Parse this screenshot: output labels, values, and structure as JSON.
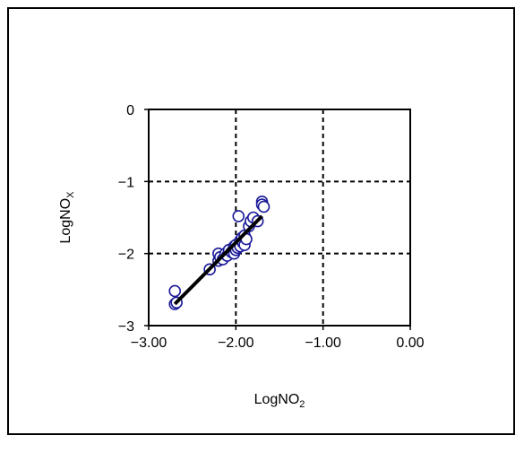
{
  "chart_data": {
    "type": "scatter",
    "xlabel": "LogNO",
    "xlabel_sub": "2",
    "ylabel": "LogNO",
    "ylabel_sub": "X",
    "xlim": [
      -3.0,
      0.0
    ],
    "ylim": [
      -3,
      0
    ],
    "xticks": [
      -3.0,
      -2.0,
      -1.0,
      0.0
    ],
    "xtick_labels": [
      "−3.00",
      "−2.00",
      "−1.00",
      "0.00"
    ],
    "yticks": [
      0,
      -1,
      -2,
      -3
    ],
    "ytick_labels": [
      "0",
      "−1",
      "−2",
      "−3"
    ],
    "grid": true,
    "grid_style": "dashed",
    "points": {
      "x": [
        -2.7,
        -2.7,
        -2.68,
        -2.3,
        -2.2,
        -2.2,
        -2.18,
        -2.15,
        -2.12,
        -2.1,
        -2.08,
        -2.05,
        -2.02,
        -2.02,
        -2.0,
        -2.0,
        -1.98,
        -1.97,
        -1.95,
        -1.95,
        -1.93,
        -1.92,
        -1.9,
        -1.9,
        -1.88,
        -1.85,
        -1.83,
        -1.8,
        -1.75,
        -1.7,
        -1.7,
        -1.68
      ],
      "y": [
        -2.52,
        -2.7,
        -2.68,
        -2.22,
        -2.0,
        -2.1,
        -2.05,
        -2.08,
        -2.0,
        -2.03,
        -1.95,
        -1.98,
        -1.9,
        -2.0,
        -1.95,
        -1.88,
        -1.92,
        -1.48,
        -1.82,
        -1.9,
        -1.78,
        -1.85,
        -1.75,
        -1.88,
        -1.8,
        -1.62,
        -1.55,
        -1.5,
        -1.55,
        -1.28,
        -1.32,
        -1.35
      ]
    },
    "fit_line": {
      "x": [
        -2.7,
        -1.7
      ],
      "y": [
        -2.7,
        -1.48
      ]
    },
    "colors": {
      "marker_edge": "#1a1a99",
      "marker_fill": "#ffffff",
      "fit_line": "#000000",
      "grid": "#000000",
      "frame": "#000000"
    }
  }
}
